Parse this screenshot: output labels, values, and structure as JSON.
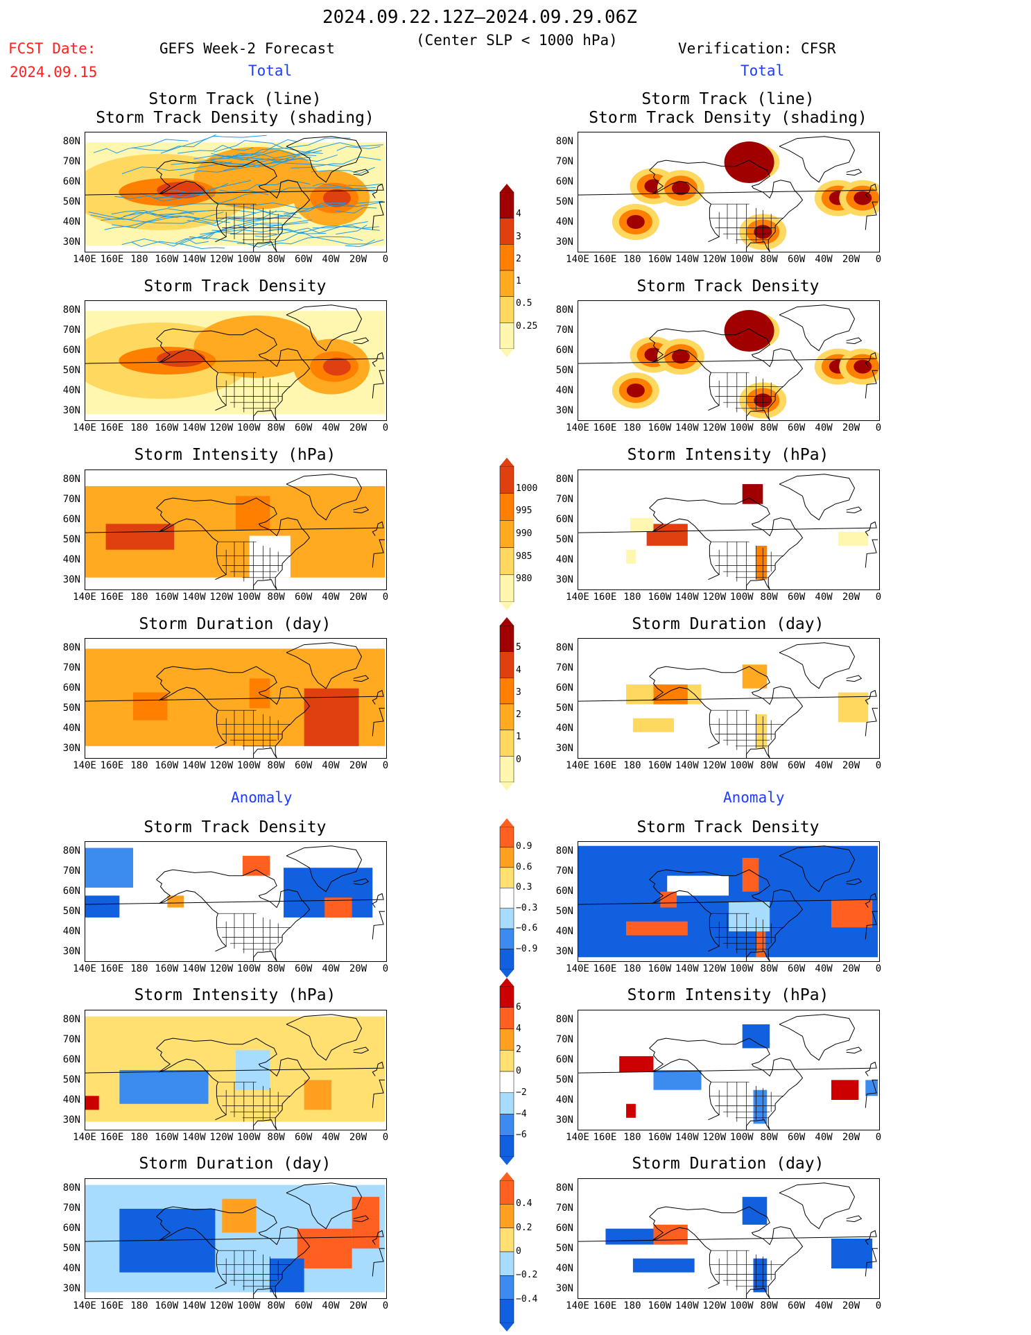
{
  "header": {
    "period": "2024.09.22.12Z–2024.09.29.06Z",
    "subtitle": "(Center SLP < 1000 hPa)",
    "fcst_label": "FCST Date:",
    "fcst_date": "2024.09.15",
    "left_title": "GEFS Week-2 Forecast",
    "right_title": "Verification: CFSR"
  },
  "sections": {
    "total_left": "Total",
    "total_right": "Total",
    "anom_left": "Anomaly",
    "anom_right": "Anomaly"
  },
  "panel_titles": {
    "track_line": "Storm Track (line)",
    "track_shading": "Storm Track Density (shading)",
    "density": "Storm Track Density",
    "intensity": "Storm Intensity (hPa)",
    "duration": "Storm Duration (day)"
  },
  "axes": {
    "lat_labels": [
      "80N",
      "70N",
      "60N",
      "50N",
      "40N",
      "30N"
    ],
    "lon_labels": [
      "140E",
      "160E",
      "180",
      "160W",
      "140W",
      "120W",
      "100W",
      "80W",
      "60W",
      "40W",
      "20W",
      "0"
    ]
  },
  "colorbars": {
    "density_total": [
      "4",
      "3",
      "2",
      "1",
      "0.5",
      "0.25"
    ],
    "intensity_total": [
      "1000",
      "995",
      "990",
      "985",
      "980"
    ],
    "duration_total": [
      "5",
      "4",
      "3",
      "2",
      "1",
      "0"
    ],
    "density_anom": [
      "0.9",
      "0.6",
      "0.3",
      "−0.3",
      "−0.6",
      "−0.9"
    ],
    "intensity_anom": [
      "6",
      "4",
      "2",
      "0",
      "−2",
      "−4",
      "−6"
    ],
    "duration_anom": [
      "0.4",
      "0.2",
      "0",
      "−0.2",
      "−0.4"
    ]
  },
  "colors": {
    "total_scale": [
      "#fff7b0",
      "#ffd860",
      "#ffaa20",
      "#ff7f00",
      "#e04010",
      "#a00000"
    ],
    "anom_scale": [
      "#1060e0",
      "#3c8cf0",
      "#a8dcff",
      "#ffffff",
      "#ffe070",
      "#ffa020",
      "#ff6020",
      "#cc0000"
    ],
    "track_line": "#2299dd",
    "coast": "#000000"
  }
}
